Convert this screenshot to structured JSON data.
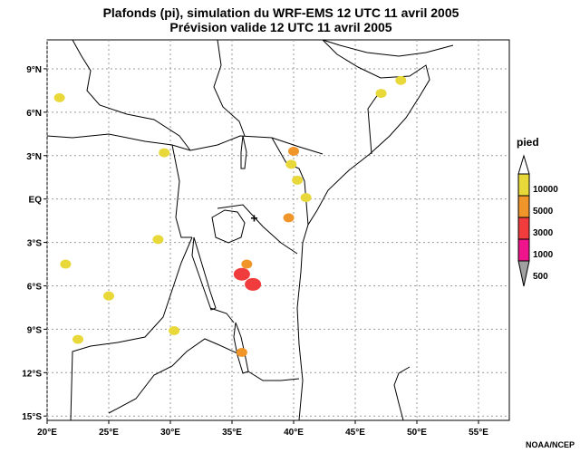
{
  "title": {
    "line1": "Plafonds (pi), simulation du WRF-EMS 12 UTC 11 avril 2005",
    "line2": "Prévision valide 12 UTC 11 avril 2005"
  },
  "map": {
    "lon_range": [
      20,
      57.5
    ],
    "lat_range": [
      -15.3,
      11
    ],
    "lat_ticks": [
      {
        "value": 9,
        "label": "9°N"
      },
      {
        "value": 6,
        "label": "6°N"
      },
      {
        "value": 3,
        "label": "3°N"
      },
      {
        "value": 0,
        "label": "EQ"
      },
      {
        "value": -3,
        "label": "3°S"
      },
      {
        "value": -6,
        "label": "6°S"
      },
      {
        "value": -9,
        "label": "9°S"
      },
      {
        "value": -12,
        "label": "12°S"
      },
      {
        "value": -15,
        "label": "15°S"
      }
    ],
    "lon_ticks": [
      {
        "value": 20,
        "label": "20°E"
      },
      {
        "value": 25,
        "label": "25°E"
      },
      {
        "value": 30,
        "label": "30°E"
      },
      {
        "value": 35,
        "label": "35°E"
      },
      {
        "value": 40,
        "label": "40°E"
      },
      {
        "value": 45,
        "label": "45°E"
      },
      {
        "value": 50,
        "label": "50°E"
      },
      {
        "value": 55,
        "label": "55°E"
      }
    ],
    "grid": true,
    "marker": {
      "lon": 36.8,
      "lat": -1.3,
      "symbol": "+"
    }
  },
  "legend": {
    "title": "pied",
    "entries": [
      {
        "label": "10000",
        "color": "#e8d83a"
      },
      {
        "label": "5000",
        "color": "#f0952a"
      },
      {
        "label": "3000",
        "color": "#f03c3c"
      },
      {
        "label": "1000",
        "color": "#f0148c"
      },
      {
        "label": "500",
        "color": "#a0a0a0"
      }
    ]
  },
  "ceiling_areas": [
    {
      "lon": 40.0,
      "lat": 3.3,
      "category": "5000"
    },
    {
      "lon": 39.8,
      "lat": 2.4,
      "category": "10000"
    },
    {
      "lon": 40.3,
      "lat": 1.3,
      "category": "10000"
    },
    {
      "lon": 41.0,
      "lat": 0.1,
      "category": "10000"
    },
    {
      "lon": 39.6,
      "lat": -1.3,
      "category": "5000"
    },
    {
      "lon": 35.8,
      "lat": -5.2,
      "category": "3000"
    },
    {
      "lon": 36.7,
      "lat": -5.9,
      "category": "3000"
    },
    {
      "lon": 36.2,
      "lat": -4.5,
      "category": "5000"
    },
    {
      "lon": 35.8,
      "lat": -10.6,
      "category": "5000"
    },
    {
      "lon": 48.7,
      "lat": 8.2,
      "category": "10000"
    },
    {
      "lon": 47.1,
      "lat": 7.3,
      "category": "10000"
    },
    {
      "lon": 21.0,
      "lat": 7.0,
      "category": "10000"
    },
    {
      "lon": 21.5,
      "lat": -4.5,
      "category": "10000"
    },
    {
      "lon": 25.0,
      "lat": -6.7,
      "category": "10000"
    },
    {
      "lon": 22.5,
      "lat": -9.7,
      "category": "10000"
    },
    {
      "lon": 29.5,
      "lat": 3.2,
      "category": "10000"
    },
    {
      "lon": 29.0,
      "lat": -2.8,
      "category": "10000"
    },
    {
      "lon": 30.3,
      "lat": -9.1,
      "category": "10000"
    }
  ],
  "credit": "NOAA/NCEP"
}
